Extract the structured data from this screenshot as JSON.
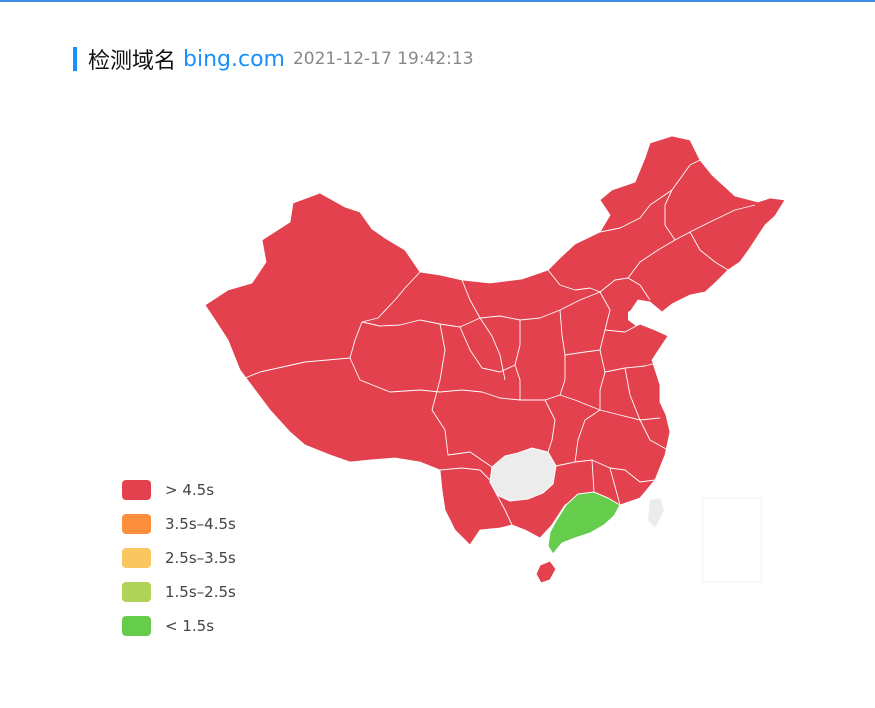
{
  "header": {
    "label": "检测域名",
    "domain": "bing.com",
    "timestamp": "2021-12-17 19:42:13"
  },
  "colors": {
    "accent": "#1890ff",
    "province_red": "#e2414d",
    "province_green": "#66cc4c",
    "no_data": "#ececec"
  },
  "map": {
    "region": "China",
    "status": {
      "Guangdong": "< 1.5s",
      "Guizhou": "no data",
      "other_provinces": "> 4.5s"
    }
  },
  "legend": [
    {
      "label": "> 4.5s",
      "color": "#e2414d"
    },
    {
      "label": "3.5s–4.5s",
      "color": "#fd8e3d"
    },
    {
      "label": "2.5s–3.5s",
      "color": "#f9c65f"
    },
    {
      "label": "1.5s–2.5s",
      "color": "#b0d45a"
    },
    {
      "label": "< 1.5s",
      "color": "#66cc4c"
    }
  ]
}
